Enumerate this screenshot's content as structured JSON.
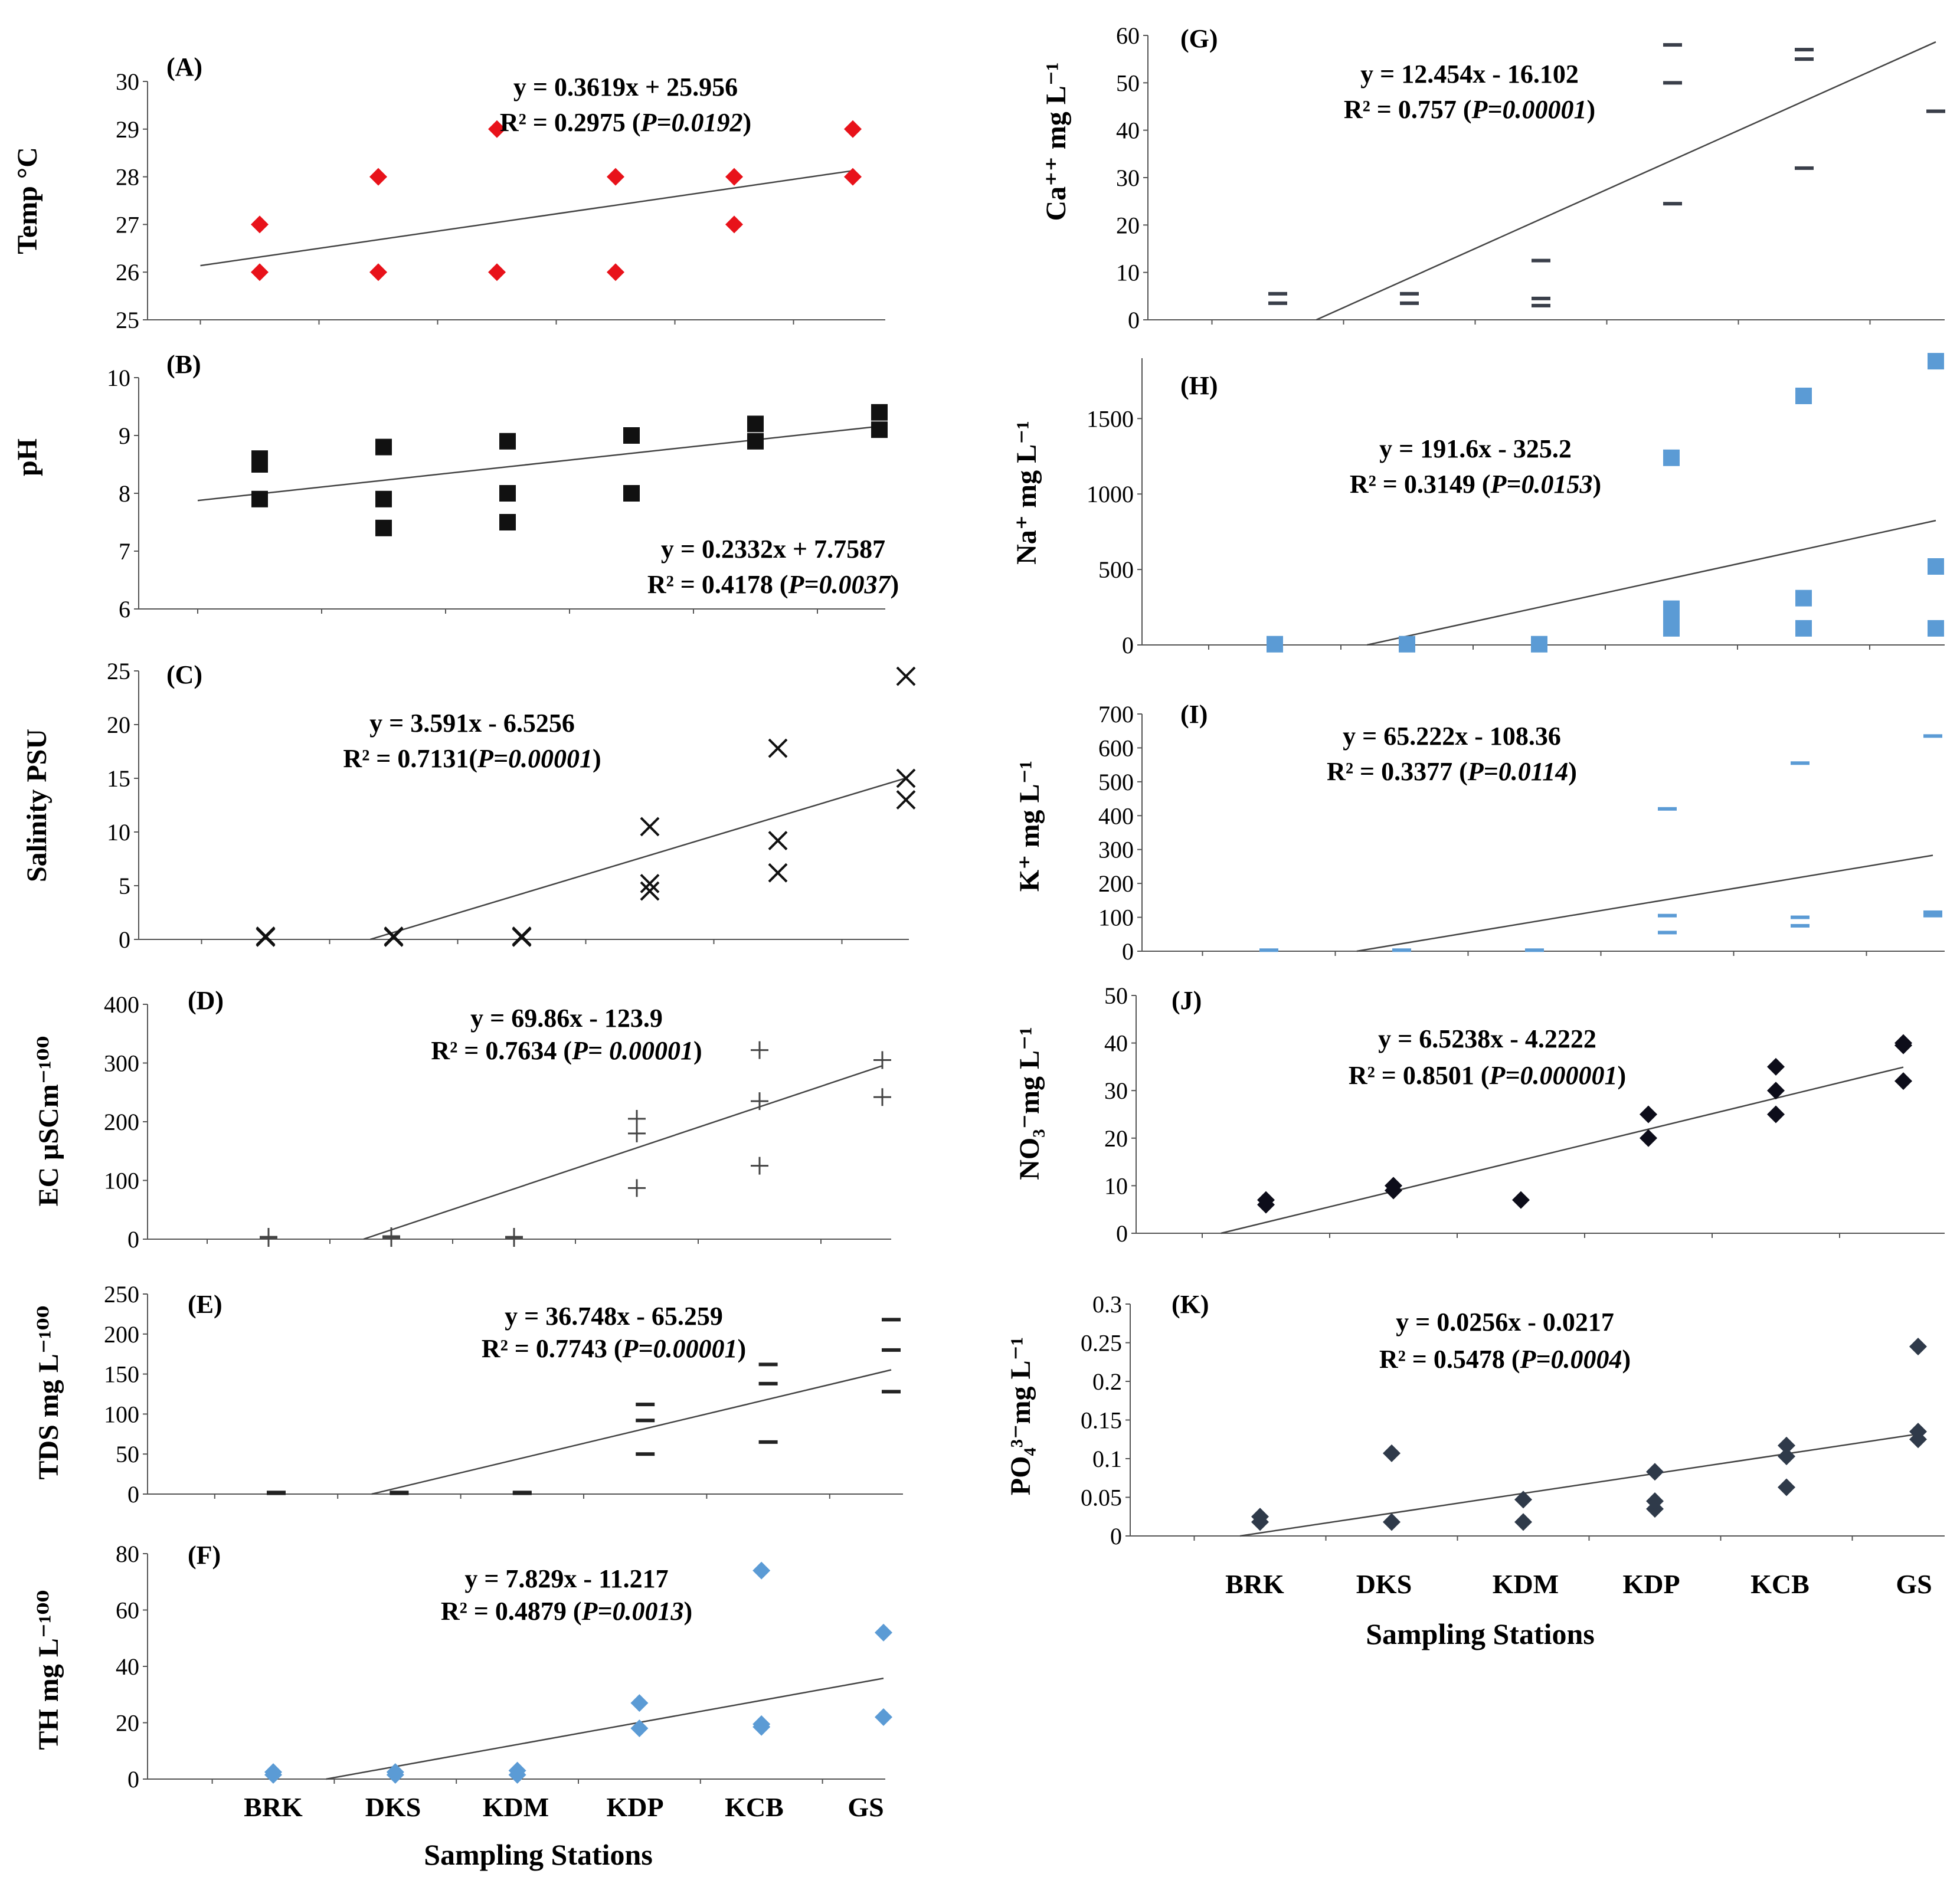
{
  "figure": {
    "x_categories": [
      "BRK",
      "DKS",
      "KDM",
      "KDP",
      "KCB",
      "GS"
    ],
    "x_title": "Sampling Stations"
  },
  "chart_data": [
    {
      "id": "A",
      "letter": "(A)",
      "type": "scatter",
      "ylabel": "Temp °C",
      "ylim": [
        25,
        30
      ],
      "yticks": [
        25,
        26,
        27,
        28,
        29,
        30
      ],
      "marker": "diamond",
      "color": "#e8121a",
      "points": [
        [
          1,
          26
        ],
        [
          1,
          27
        ],
        [
          2,
          26
        ],
        [
          2,
          28
        ],
        [
          3,
          26
        ],
        [
          3,
          29
        ],
        [
          4,
          26
        ],
        [
          4,
          28
        ],
        [
          5,
          27
        ],
        [
          5,
          28
        ],
        [
          6,
          28
        ],
        [
          6,
          29
        ]
      ],
      "trend": {
        "slope": 0.3619,
        "intercept": 25.956
      },
      "eq1": "y = 0.3619x + 25.956",
      "r2": "R² = 0.2975 (",
      "pval": "P=0.0192",
      "close": ")"
    },
    {
      "id": "B",
      "letter": "(B)",
      "type": "scatter",
      "ylabel": "pH",
      "ylim": [
        6,
        10
      ],
      "yticks": [
        6,
        7,
        8,
        9,
        10
      ],
      "marker": "square",
      "color": "#111111",
      "points": [
        [
          1,
          7.9
        ],
        [
          1,
          8.5
        ],
        [
          1,
          8.6
        ],
        [
          2,
          7.4
        ],
        [
          2,
          7.9
        ],
        [
          2,
          8.8
        ],
        [
          3,
          7.5
        ],
        [
          3,
          8.0
        ],
        [
          3,
          8.9
        ],
        [
          4,
          8.0
        ],
        [
          4,
          9.0
        ],
        [
          5,
          8.9
        ],
        [
          5,
          9.2
        ],
        [
          6,
          9.1
        ],
        [
          6,
          9.4
        ]
      ],
      "trend": {
        "slope": 0.2332,
        "intercept": 7.7587
      },
      "eq1": "y = 0.2332x + 7.7587",
      "r2": "R² = 0.4178 (",
      "pval": "P=0.0037",
      "close": ")"
    },
    {
      "id": "C",
      "letter": "(C)",
      "type": "scatter",
      "ylabel": "Salinity PSU",
      "ylim": [
        0,
        25
      ],
      "yticks": [
        0,
        5,
        10,
        15,
        20,
        25
      ],
      "marker": "x",
      "color": "#111111",
      "points": [
        [
          1,
          0.2
        ],
        [
          1,
          0.3
        ],
        [
          2,
          0.2
        ],
        [
          2,
          0.3
        ],
        [
          3,
          0.2
        ],
        [
          3,
          0.3
        ],
        [
          4,
          4.5
        ],
        [
          4,
          5.2
        ],
        [
          4,
          10.5
        ],
        [
          5,
          6.2
        ],
        [
          5,
          9.2
        ],
        [
          5,
          17.8
        ],
        [
          6,
          13.0
        ],
        [
          6,
          15.0
        ],
        [
          6,
          24.5
        ]
      ],
      "trend": {
        "slope": 3.591,
        "intercept": -6.5256
      },
      "eq1": "y = 3.591x - 6.5256",
      "r2": "R² = 0.7131(",
      "pval": "P=0.00001",
      "close": ")"
    },
    {
      "id": "D",
      "letter": "(D)",
      "type": "scatter",
      "ylabel": "EC μSCm⁻¹⁰⁰",
      "ylim": [
        0,
        400
      ],
      "yticks": [
        0,
        100,
        200,
        300,
        400
      ],
      "marker": "plus",
      "color": "#444444",
      "points": [
        [
          1,
          2
        ],
        [
          1,
          4
        ],
        [
          2,
          2
        ],
        [
          2,
          5
        ],
        [
          3,
          2
        ],
        [
          3,
          4
        ],
        [
          4,
          87
        ],
        [
          4,
          180
        ],
        [
          4,
          205
        ],
        [
          5,
          125
        ],
        [
          5,
          235
        ],
        [
          5,
          322
        ],
        [
          6,
          242
        ],
        [
          6,
          305
        ]
      ],
      "trend": {
        "slope": 69.86,
        "intercept": -123.9
      },
      "eq1": "y = 69.86x - 123.9",
      "r2": "R² = 0.7634 (",
      "pval": "P= 0.00001",
      "close": ")"
    },
    {
      "id": "E",
      "letter": "(E)",
      "type": "scatter",
      "ylabel": "TDS mg L⁻¹⁰⁰",
      "ylim": [
        0,
        250
      ],
      "yticks": [
        0,
        50,
        100,
        150,
        200,
        250
      ],
      "marker": "dash",
      "color": "#222222",
      "points": [
        [
          1,
          1
        ],
        [
          1,
          2
        ],
        [
          2,
          1
        ],
        [
          2,
          2
        ],
        [
          3,
          1
        ],
        [
          3,
          2
        ],
        [
          4,
          50
        ],
        [
          4,
          92
        ],
        [
          4,
          112
        ],
        [
          5,
          65
        ],
        [
          5,
          138
        ],
        [
          5,
          162
        ],
        [
          6,
          128
        ],
        [
          6,
          180
        ],
        [
          6,
          218
        ]
      ],
      "trend": {
        "slope": 36.748,
        "intercept": -65.259
      },
      "eq1": "y = 36.748x - 65.259",
      "r2": "R² = 0.7743 (",
      "pval": "P=0.00001",
      "close": ")"
    },
    {
      "id": "F",
      "letter": "(F)",
      "type": "scatter",
      "ylabel": "TH mg L⁻¹⁰⁰",
      "ylim": [
        0,
        80
      ],
      "yticks": [
        0,
        20,
        40,
        60,
        80
      ],
      "marker": "diamond",
      "color": "#5b9bd5",
      "points": [
        [
          1,
          1.5
        ],
        [
          1,
          2.5
        ],
        [
          2,
          1.5
        ],
        [
          2,
          2.5
        ],
        [
          3,
          1.5
        ],
        [
          3,
          3.0
        ],
        [
          4,
          18
        ],
        [
          4,
          27
        ],
        [
          5,
          18.5
        ],
        [
          5,
          19.5
        ],
        [
          5,
          74
        ],
        [
          6,
          22
        ],
        [
          6,
          52
        ]
      ],
      "trend": {
        "slope": 7.829,
        "intercept": -11.217
      },
      "eq1": "y = 7.829x - 11.217",
      "r2": "R² = 0.4879 (",
      "pval": "P=0.0013",
      "close": ")"
    },
    {
      "id": "G",
      "letter": "(G)",
      "type": "scatter",
      "ylabel": "Ca⁺⁺ mg L⁻¹",
      "ylim": [
        0,
        60
      ],
      "yticks": [
        0,
        10,
        20,
        30,
        40,
        50,
        60
      ],
      "marker": "dash",
      "color": "#3a3f4a",
      "points": [
        [
          1,
          3.5
        ],
        [
          1,
          5.5
        ],
        [
          2,
          3.5
        ],
        [
          2,
          5.5
        ],
        [
          3,
          3
        ],
        [
          3,
          4.5
        ],
        [
          3,
          12.5
        ],
        [
          4,
          24.5
        ],
        [
          4,
          50
        ],
        [
          4,
          58
        ],
        [
          5,
          32
        ],
        [
          5,
          55
        ],
        [
          5,
          57
        ],
        [
          6,
          44
        ]
      ],
      "trend": {
        "slope": 12.454,
        "intercept": -16.102
      },
      "eq1": "y = 12.454x - 16.102",
      "r2": "R² = 0.757 (",
      "pval": "P=0.00001",
      "close": ")"
    },
    {
      "id": "H",
      "letter": "(H)",
      "type": "scatter",
      "ylabel": "Na⁺ mg L⁻¹",
      "ylim": [
        0,
        1900
      ],
      "yticks": [
        0,
        500,
        1000,
        1500
      ],
      "marker": "square",
      "color": "#5b9bd5",
      "points": [
        [
          1,
          5
        ],
        [
          2,
          5
        ],
        [
          3,
          5
        ],
        [
          4,
          110
        ],
        [
          4,
          175
        ],
        [
          4,
          240
        ],
        [
          4,
          1240
        ],
        [
          5,
          110
        ],
        [
          5,
          310
        ],
        [
          5,
          1650
        ],
        [
          6,
          110
        ],
        [
          6,
          520
        ],
        [
          6,
          1880
        ]
      ],
      "trend": {
        "slope": 191.6,
        "intercept": -325.2
      },
      "eq1": "y = 191.6x - 325.2",
      "r2": "R² = 0.3149 (",
      "pval": "P=0.0153",
      "close": ")"
    },
    {
      "id": "I",
      "letter": "(I)",
      "type": "scatter",
      "ylabel": "K⁺ mg L⁻¹",
      "ylim": [
        0,
        700
      ],
      "yticks": [
        0,
        100,
        200,
        300,
        400,
        500,
        600,
        700
      ],
      "marker": "dash",
      "color": "#5b9bd5",
      "points": [
        [
          1,
          3
        ],
        [
          2,
          3
        ],
        [
          3,
          3
        ],
        [
          4,
          55
        ],
        [
          4,
          105
        ],
        [
          4,
          420
        ],
        [
          5,
          75
        ],
        [
          5,
          100
        ],
        [
          5,
          555
        ],
        [
          6,
          105
        ],
        [
          6,
          115
        ],
        [
          6,
          635
        ]
      ],
      "trend": {
        "slope": 65.222,
        "intercept": -108.36
      },
      "eq1": "y = 65.222x - 108.36",
      "r2": "R² = 0.3377 (",
      "pval": "P=0.0114",
      "close": ")"
    },
    {
      "id": "J",
      "letter": "(J)",
      "type": "scatter",
      "ylabel": "NO₃⁻mg L⁻¹",
      "ylim": [
        0,
        50
      ],
      "yticks": [
        0,
        10,
        20,
        30,
        40,
        50
      ],
      "marker": "diamond",
      "color": "#0d0d1a",
      "points": [
        [
          1,
          6
        ],
        [
          1,
          7
        ],
        [
          2,
          9
        ],
        [
          2,
          10
        ],
        [
          3,
          7
        ],
        [
          4,
          20
        ],
        [
          4,
          25
        ],
        [
          5,
          25
        ],
        [
          5,
          30
        ],
        [
          5,
          35
        ],
        [
          6,
          32
        ],
        [
          6,
          39.5
        ],
        [
          6,
          40
        ]
      ],
      "trend": {
        "slope": 6.5238,
        "intercept": -4.2222
      },
      "eq1": "y = 6.5238x - 4.2222",
      "r2": "R² = 0.8501 (",
      "pval": "P=0.000001",
      "close": ")"
    },
    {
      "id": "K",
      "letter": "(K)",
      "type": "scatter",
      "ylabel": "PO₄³⁻mg L⁻¹",
      "ylim": [
        0,
        0.3
      ],
      "yticks": [
        0,
        0.05,
        0.1,
        0.15,
        0.2,
        0.25,
        0.3
      ],
      "marker": "diamond",
      "color": "#2f3a4a",
      "points": [
        [
          1,
          0.018
        ],
        [
          1,
          0.025
        ],
        [
          2,
          0.018
        ],
        [
          2,
          0.107
        ],
        [
          3,
          0.018
        ],
        [
          3,
          0.047
        ],
        [
          4,
          0.035
        ],
        [
          4,
          0.045
        ],
        [
          4,
          0.083
        ],
        [
          5,
          0.063
        ],
        [
          5,
          0.103
        ],
        [
          5,
          0.117
        ],
        [
          6,
          0.125
        ],
        [
          6,
          0.135
        ],
        [
          6,
          0.245
        ]
      ],
      "trend": {
        "slope": 0.0256,
        "intercept": -0.0217
      },
      "eq1": "y = 0.0256x - 0.0217",
      "r2": "R² = 0.5478 (",
      "pval": "P=0.0004",
      "close": ")"
    }
  ]
}
